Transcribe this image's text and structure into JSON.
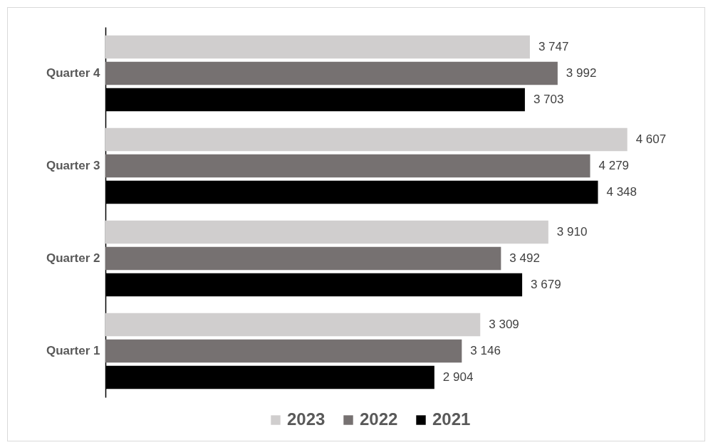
{
  "chart_data": {
    "type": "bar",
    "orientation": "horizontal",
    "categories": [
      "Quarter 4",
      "Quarter 3",
      "Quarter 2",
      "Quarter 1"
    ],
    "legend": "bottom",
    "series": [
      {
        "name": "2023",
        "color": "#d0cece",
        "values": [
          3747,
          4607,
          3910,
          3309
        ],
        "value_labels": [
          "3 747",
          "4 607",
          "3 910",
          "3 309"
        ]
      },
      {
        "name": "2022",
        "color": "#767171",
        "values": [
          3992,
          4279,
          3492,
          3146
        ],
        "value_labels": [
          "3 992",
          "4 279",
          "3 492",
          "3 146"
        ]
      },
      {
        "name": "2021",
        "color": "#000000",
        "values": [
          3703,
          4348,
          3679,
          2904
        ],
        "value_labels": [
          "3 703",
          "4 348",
          "3 679",
          "2 904"
        ]
      }
    ]
  }
}
